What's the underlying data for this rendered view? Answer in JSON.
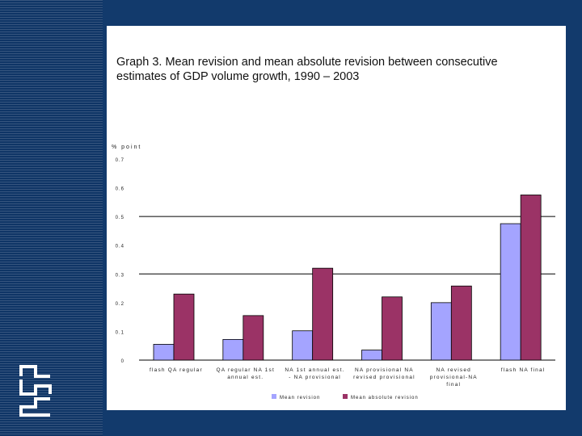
{
  "slide": {
    "title_line1": "Graph 3. Mean revision and mean absolute revision between consecutive",
    "title_line2": "estimates of GDP volume growth, 1990 – 2003"
  },
  "colors": {
    "background": "#123a6c",
    "mean_revision": "#a4a4ff",
    "mean_absolute_revision": "#9b3366"
  },
  "logo": {
    "icon": "cbs-logo-icon"
  },
  "chart_data": {
    "type": "bar",
    "ylabel": "% point",
    "ylim": [
      0,
      0.7
    ],
    "yticks": [
      0,
      0.1,
      0.2,
      0.3,
      0.4,
      0.5,
      0.6,
      0.7
    ],
    "ytick_labels": [
      "0",
      "0.1",
      "0.2",
      "0.3",
      "0.4",
      "0.5",
      "0.6",
      "0.7"
    ],
    "gridlines": [
      0.3,
      0.5
    ],
    "categories": [
      [
        "flash QA",
        "regular"
      ],
      [
        "QA regular",
        "NA 1st",
        "annual est."
      ],
      [
        "NA 1st annual est.",
        "- NA provisional"
      ],
      [
        "NA provisional",
        "NA revised provisional"
      ],
      [
        "NA revised",
        "provisional",
        "NA final"
      ],
      [
        "flash",
        "NA final"
      ]
    ],
    "category_lines": [
      [
        "flash QA regular"
      ],
      [
        "QA regular NA 1st",
        "annual est."
      ],
      [
        "NA 1st annual est.",
        "- NA provisional"
      ],
      [
        "NA provisional NA",
        "revised provisional"
      ],
      [
        "NA revised",
        "provisional-NA",
        "final"
      ],
      [
        "flash NA final"
      ]
    ],
    "series": [
      {
        "name": "Mean revision",
        "values": [
          0.055,
          0.072,
          0.102,
          0.035,
          0.2,
          0.475
        ]
      },
      {
        "name": "Mean absolute revision",
        "values": [
          0.23,
          0.155,
          0.32,
          0.22,
          0.258,
          0.575
        ]
      }
    ],
    "legend_position": "bottom"
  }
}
